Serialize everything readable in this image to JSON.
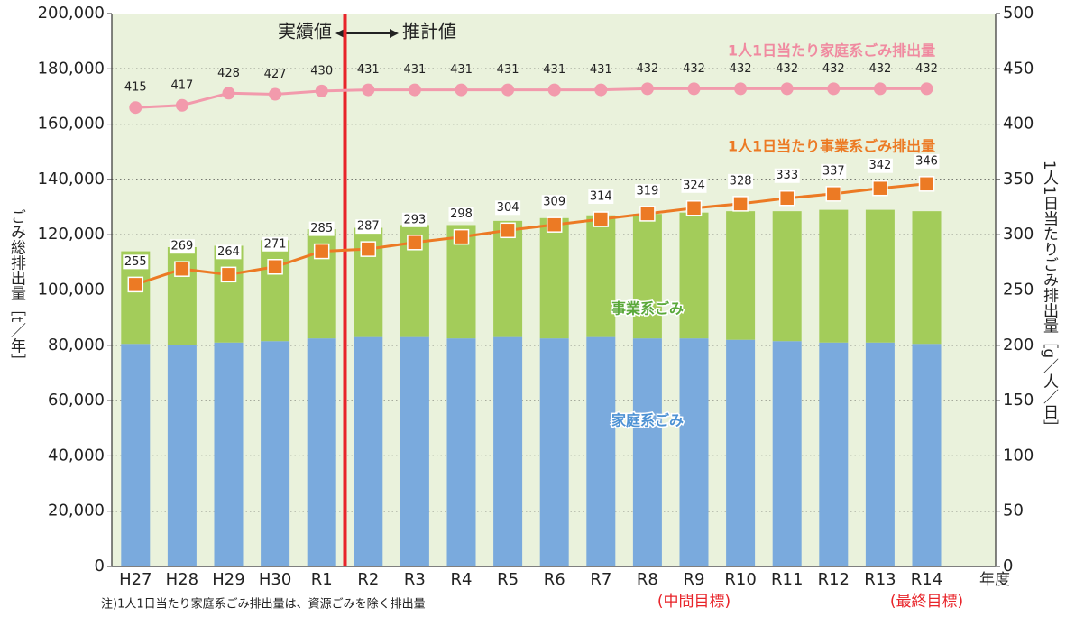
{
  "chart_data": {
    "type": "stacked_bar_line",
    "y_label": "ごみ総排出量［t／年］",
    "y2_label": "1人1日当たりごみ排出量［g／人／日］",
    "x_label": "年度",
    "note": "注)1人1日当たり家庭系ごみ排出量は、資源ごみを除く排出量",
    "annotation_left": "実績値",
    "annotation_right": "推計値",
    "categories": [
      "H27",
      "H28",
      "H29",
      "H30",
      "R1",
      "R2",
      "R3",
      "R4",
      "R5",
      "R6",
      "R7",
      "R8",
      "R9",
      "R10",
      "R11",
      "R12",
      "R13",
      "R14"
    ],
    "category_notes": [
      null,
      null,
      null,
      null,
      null,
      null,
      null,
      null,
      null,
      null,
      null,
      null,
      "(中間目標)",
      null,
      null,
      null,
      null,
      "(最終目標)"
    ],
    "series": [
      {
        "name": "家庭系ごみ",
        "color": "#7aaadd",
        "kind": "bar",
        "values": [
          80500,
          80000,
          81000,
          81500,
          82500,
          83000,
          83000,
          82500,
          83000,
          82500,
          83000,
          82500,
          82500,
          82000,
          81500,
          81000,
          81000,
          80500
        ]
      },
      {
        "name": "事業系ごみ",
        "color": "#a3cc5a",
        "kind": "bar",
        "values": [
          33500,
          35500,
          35000,
          36500,
          39500,
          39500,
          40500,
          41000,
          42000,
          43500,
          44000,
          45000,
          45500,
          46500,
          47000,
          48000,
          48000,
          48000
        ]
      },
      {
        "name": "1人1日当たり家庭系ごみ排出量",
        "color": "#f29aac",
        "kind": "line",
        "axis": "y2",
        "values": [
          415,
          417,
          428,
          427,
          430,
          431,
          431,
          431,
          431,
          431,
          431,
          432,
          432,
          432,
          432,
          432,
          432,
          432
        ]
      },
      {
        "name": "1人1日当たり事業系ごみ排出量",
        "color": "#ec7a24",
        "kind": "line",
        "axis": "y2",
        "values": [
          255,
          269,
          264,
          271,
          285,
          287,
          293,
          298,
          304,
          309,
          314,
          319,
          324,
          328,
          333,
          337,
          342,
          346
        ]
      }
    ],
    "ylim": [
      0,
      200000
    ],
    "yticks": [
      0,
      {
        "value": 20000,
        "label": "20,000"
      },
      {
        "value": 40000,
        "label": "40,000"
      },
      {
        "value": 60000,
        "label": "60,000"
      },
      {
        "value": 80000,
        "label": "80,000"
      },
      {
        "value": 100000,
        "label": "100,000"
      },
      {
        "value": 120000,
        "label": "120,000"
      },
      {
        "value": 140000,
        "label": "140,000"
      },
      {
        "value": 160000,
        "label": "160,000"
      },
      {
        "value": 180000,
        "label": "180,000"
      },
      {
        "value": 200000,
        "label": "200,000"
      }
    ],
    "y2lim": [
      0,
      500
    ],
    "y2ticks": [
      0,
      50,
      100,
      150,
      200,
      250,
      300,
      350,
      400,
      450,
      500
    ],
    "grid": true
  }
}
